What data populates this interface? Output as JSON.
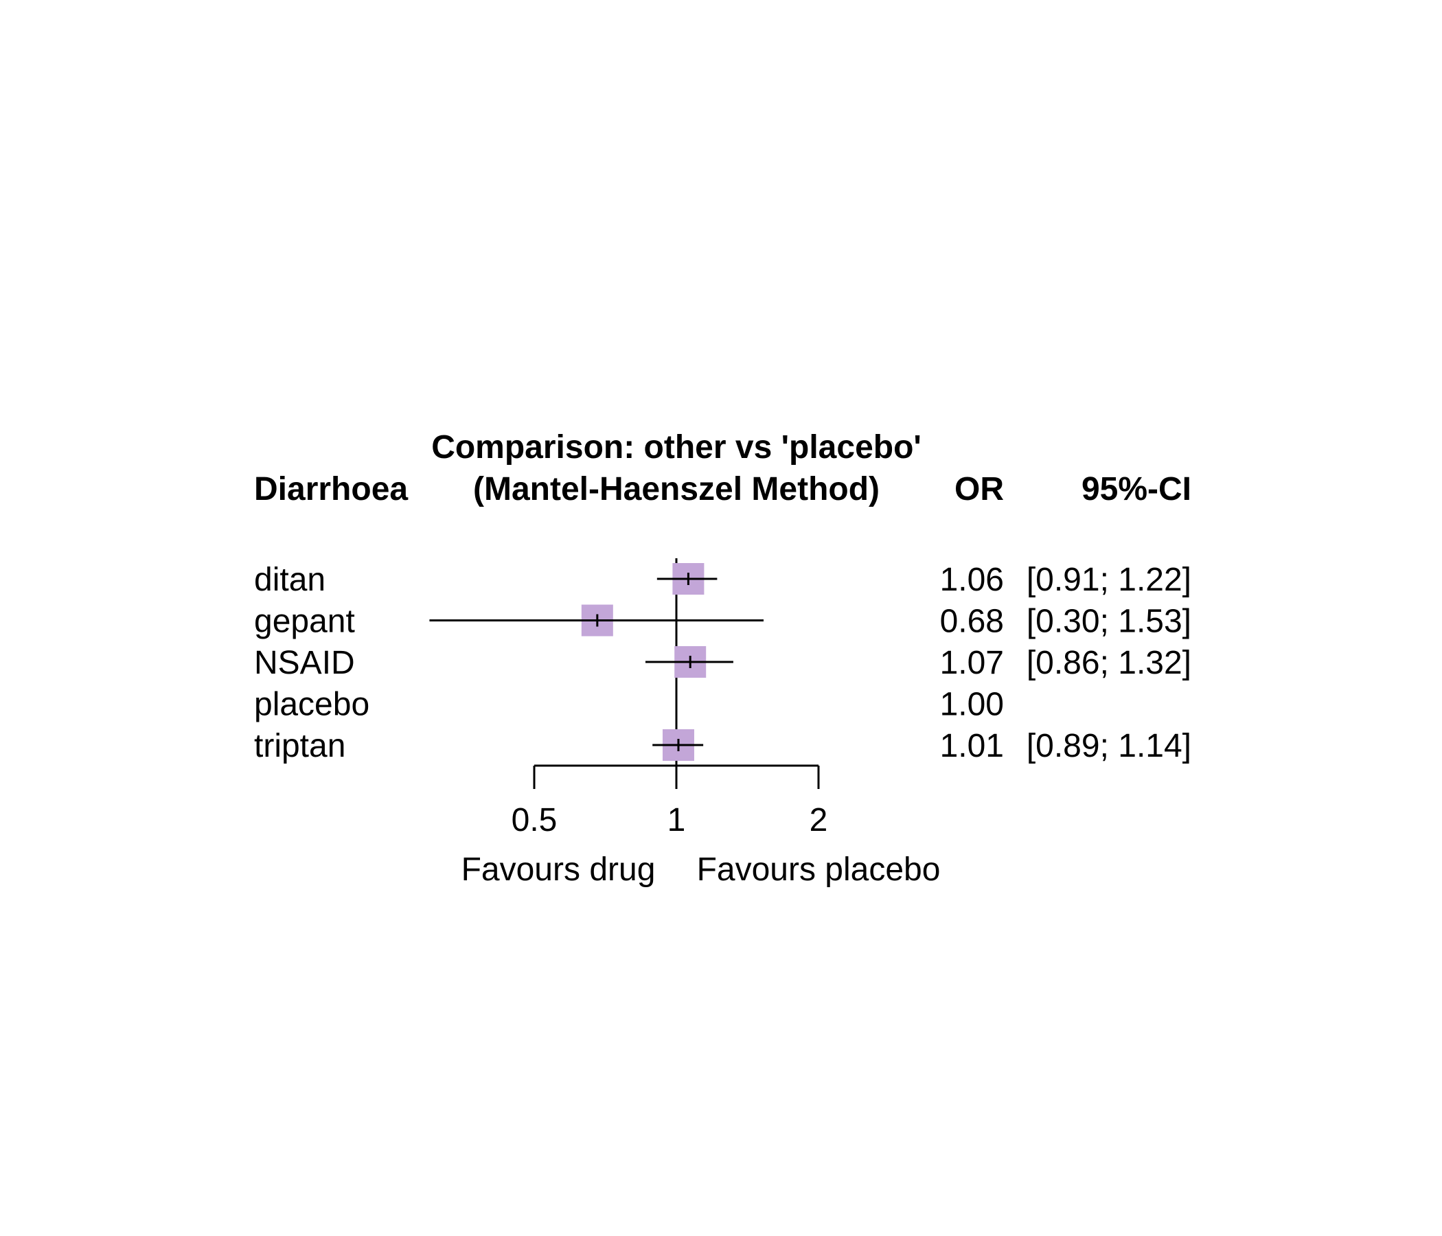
{
  "chart_data": {
    "type": "forest",
    "title_line1": "Comparison: other vs 'placebo'",
    "title_line2": "(Mantel-Haenszel Method)",
    "outcome_label": "Diarrhoea",
    "col_or_header": "OR",
    "col_ci_header": "95%-CI",
    "rows": [
      {
        "label": "ditan",
        "or": 1.06,
        "lower": 0.91,
        "upper": 1.22,
        "or_text": "1.06",
        "ci_text": "[0.91; 1.22]",
        "weight": 0.9
      },
      {
        "label": "gepant",
        "or": 0.68,
        "lower": 0.3,
        "upper": 1.53,
        "or_text": "0.68",
        "ci_text": "[0.30; 1.53]",
        "weight": 0.9
      },
      {
        "label": "NSAID",
        "or": 1.07,
        "lower": 0.86,
        "upper": 1.32,
        "or_text": "1.07",
        "ci_text": "[0.86; 1.32]",
        "weight": 0.9
      },
      {
        "label": "placebo",
        "or": 1.0,
        "lower": null,
        "upper": null,
        "or_text": "1.00",
        "ci_text": "",
        "weight": 0
      },
      {
        "label": "triptan",
        "or": 1.01,
        "lower": 0.89,
        "upper": 1.14,
        "or_text": "1.01",
        "ci_text": "[0.89; 1.14]",
        "weight": 0.9
      }
    ],
    "x_scale": "log",
    "xlim": [
      0.5,
      2
    ],
    "ref_line": 1,
    "x_ticks": [
      {
        "value": 0.5,
        "label": "0.5"
      },
      {
        "value": 1,
        "label": "1"
      },
      {
        "value": 2,
        "label": "2"
      }
    ],
    "favours_left": "Favours drug",
    "favours_right": "Favours placebo",
    "box_color": "#c3a6d8",
    "line_color": "#000000"
  }
}
